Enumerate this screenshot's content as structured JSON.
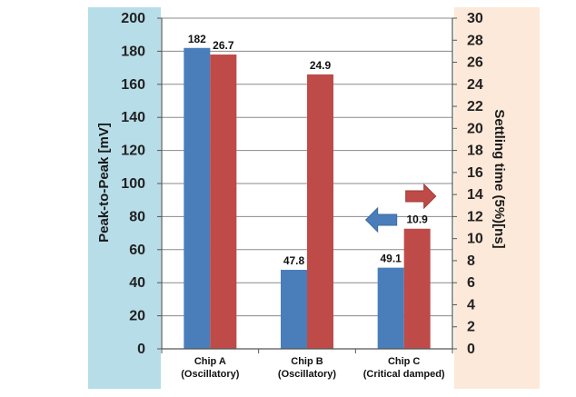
{
  "chart_data": {
    "type": "bar",
    "categories": [
      [
        "Chip  A",
        "(Oscillatory)"
      ],
      [
        "Chip  B",
        "(Oscillatory)"
      ],
      [
        "Chip  C",
        "(Critical damped)"
      ]
    ],
    "series": [
      {
        "values": [
          182,
          47.8,
          49.1
        ],
        "color": "#4a7ebb",
        "axis": "left"
      },
      {
        "values": [
          26.7,
          24.9,
          10.9
        ],
        "color": "#be4b48",
        "axis": "right"
      }
    ],
    "y_left": {
      "label": "Peak-to-Peak  [mV]",
      "ylim": [
        0,
        200
      ],
      "ticks": [
        "0",
        "20",
        "40",
        "60",
        "80",
        "100",
        "120",
        "140",
        "160",
        "180",
        "200"
      ],
      "panel_color": "#b7dde8"
    },
    "y_right": {
      "label": "Settling time (5%)[ns]",
      "ylim": [
        0,
        30
      ],
      "ticks": [
        "0",
        "2",
        "4",
        "6",
        "8",
        "10",
        "12",
        "14",
        "16",
        "18",
        "20",
        "22",
        "24",
        "26",
        "28",
        "30"
      ],
      "panel_color": "#fde9d9"
    },
    "grid": true,
    "legend": "none",
    "annotations": [
      {
        "shape": "arrow-left",
        "color": "#4a7ebb",
        "meaning": "blue bars read on left axis"
      },
      {
        "shape": "arrow-right",
        "color": "#be4b48",
        "meaning": "red bars read on right axis"
      }
    ]
  }
}
